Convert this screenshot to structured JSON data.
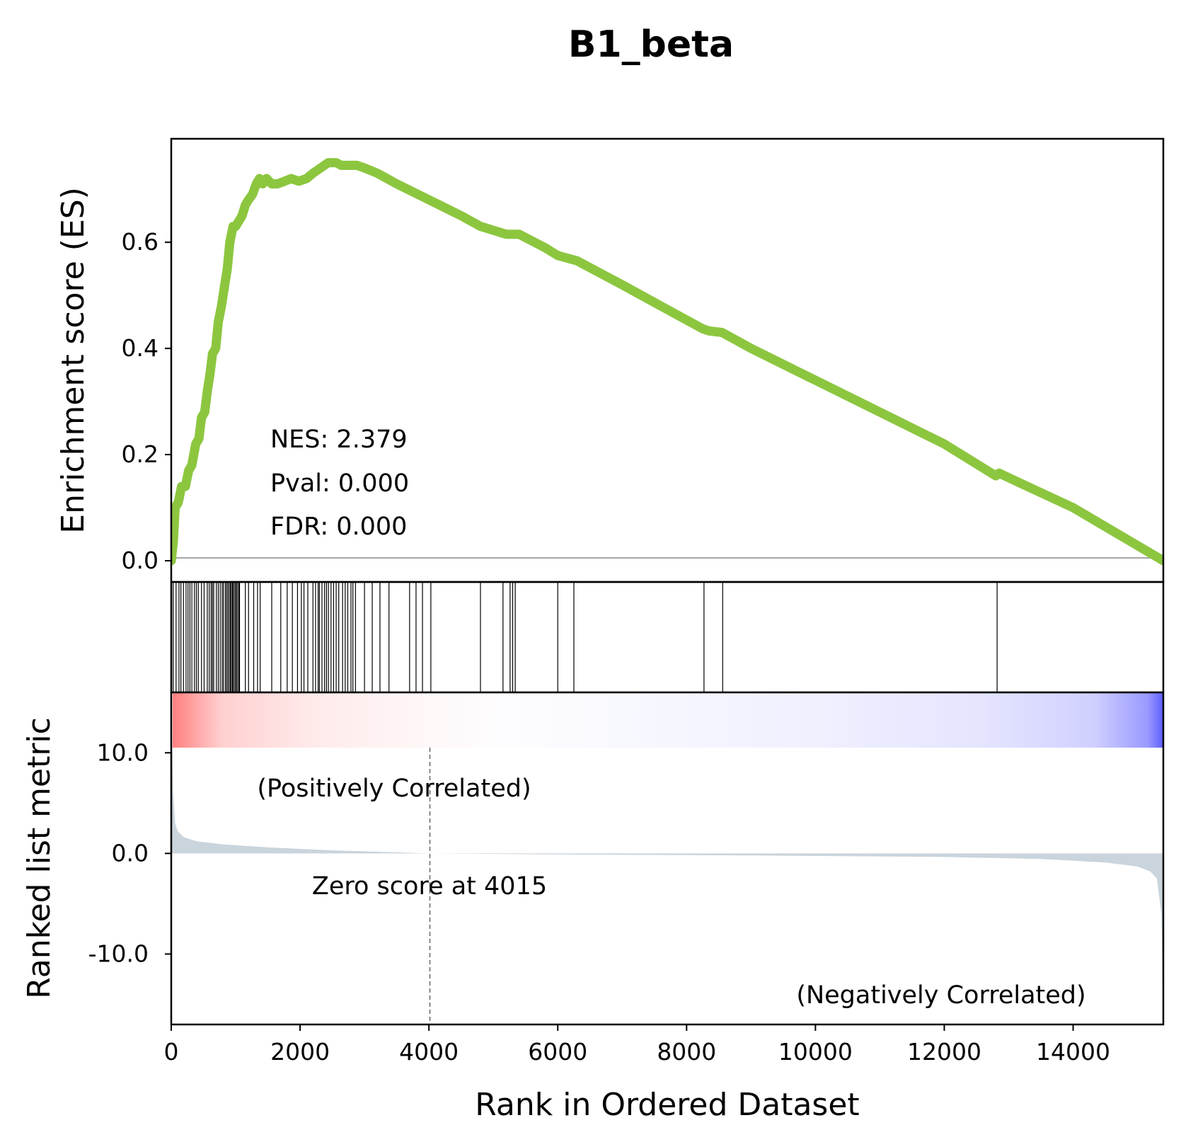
{
  "chart_data": {
    "type": "line",
    "title": "B1_beta",
    "xlabel": "Rank in Ordered Dataset",
    "xlim": [
      0,
      15400
    ],
    "x_ticks": [
      0,
      2000,
      4000,
      6000,
      8000,
      10000,
      12000,
      14000
    ],
    "es_panel": {
      "ylabel": "Enrichment score (ES)",
      "ylim": [
        -0.04,
        0.795
      ],
      "y_ticks": [
        "0.0",
        "0.2",
        "0.4",
        "0.6"
      ],
      "line_color": "#8cc63f",
      "series": [
        {
          "x": [
            0,
            35,
            60,
            110,
            160,
            220,
            270,
            320,
            380,
            430,
            470,
            520,
            560,
            600,
            640,
            690,
            730,
            780,
            830,
            870,
            910,
            960,
            1000,
            1050,
            1100,
            1150,
            1200,
            1260,
            1320,
            1370,
            1420,
            1480,
            1560,
            1650,
            1760,
            1860,
            1980,
            2100,
            2200,
            2320,
            2440,
            2560,
            2640,
            2760,
            2880,
            3000,
            3200,
            3500,
            4000,
            4500,
            4800,
            5200,
            5400,
            5800,
            6000,
            6300,
            7000,
            7600,
            8250,
            8350,
            8550,
            9000,
            10000,
            11000,
            12000,
            12800,
            12850,
            13200,
            14000,
            15400
          ],
          "y": [
            0.0,
            0.04,
            0.1,
            0.11,
            0.14,
            0.14,
            0.17,
            0.18,
            0.22,
            0.23,
            0.27,
            0.28,
            0.32,
            0.35,
            0.39,
            0.4,
            0.45,
            0.48,
            0.52,
            0.55,
            0.6,
            0.63,
            0.63,
            0.64,
            0.65,
            0.67,
            0.68,
            0.69,
            0.71,
            0.72,
            0.71,
            0.72,
            0.71,
            0.71,
            0.715,
            0.72,
            0.715,
            0.72,
            0.73,
            0.74,
            0.75,
            0.75,
            0.745,
            0.745,
            0.745,
            0.74,
            0.73,
            0.71,
            0.68,
            0.65,
            0.63,
            0.615,
            0.615,
            0.59,
            0.575,
            0.565,
            0.52,
            0.48,
            0.437,
            0.433,
            0.43,
            0.4,
            0.34,
            0.28,
            0.22,
            0.16,
            0.165,
            0.145,
            0.1,
            0.0
          ]
        }
      ],
      "annotations": [
        "NES: 2.379",
        "Pval: 0.000",
        "FDR: 0.000"
      ]
    },
    "hits_panel": {
      "hit_ranks": [
        30,
        75,
        120,
        150,
        190,
        230,
        260,
        290,
        320,
        360,
        390,
        420,
        470,
        510,
        560,
        590,
        620,
        640,
        660,
        700,
        730,
        760,
        790,
        810,
        840,
        860,
        880,
        900,
        920,
        930,
        950,
        960,
        980,
        1000,
        1010,
        1030,
        1050,
        1060,
        1150,
        1200,
        1280,
        1340,
        1380,
        1560,
        1700,
        1800,
        1880,
        1960,
        2020,
        2060,
        2120,
        2200,
        2240,
        2280,
        2300,
        2340,
        2380,
        2410,
        2440,
        2480,
        2520,
        2560,
        2600,
        2660,
        2700,
        2740,
        2790,
        2820,
        2860,
        3000,
        3120,
        3240,
        3380,
        3700,
        3800,
        3900,
        4030,
        4800,
        5150,
        5260,
        5300,
        5340,
        6000,
        6250,
        8270,
        8560,
        12820
      ]
    },
    "metric_panel": {
      "ylabel": "Ranked list metric",
      "ylim": [
        -17,
        16
      ],
      "y_ticks": [
        "10.0",
        "0.0",
        "-10.0"
      ],
      "fill_color": "#c9d4dc",
      "x": [
        0,
        10,
        30,
        60,
        100,
        200,
        400,
        800,
        1500,
        2500,
        4015,
        6000,
        9000,
        12000,
        13500,
        14500,
        15000,
        15200,
        15300,
        15370,
        15400
      ],
      "y": [
        15,
        12,
        6,
        3,
        2.2,
        1.6,
        1.2,
        0.9,
        0.6,
        0.3,
        0,
        -0.1,
        -0.2,
        -0.35,
        -0.55,
        -0.9,
        -1.3,
        -1.8,
        -2.5,
        -6,
        -17
      ],
      "zero_score_rank": 4015,
      "zero_score_label": "Zero score at 4015",
      "positive_label": "(Positively Correlated)",
      "negative_label": "(Negatively Correlated)",
      "positive_color": "#ff0000",
      "negative_color": "#0000ff"
    }
  }
}
